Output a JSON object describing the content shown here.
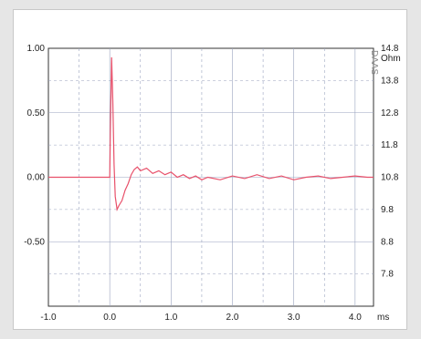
{
  "chart_data": {
    "type": "line",
    "xlabel": "ms",
    "ylabel_right": "Ohm",
    "watermark": "DAAS",
    "xlim": [
      -1.0,
      4.3
    ],
    "ylim": [
      -1.0,
      1.0
    ],
    "ylim_right": [
      6.8,
      14.8
    ],
    "x_ticks": [
      -1.0,
      0.0,
      1.0,
      2.0,
      3.0,
      4.0
    ],
    "x_tick_labels": [
      "-1.0",
      "0.0",
      "1.0",
      "2.0",
      "3.0",
      "4.0"
    ],
    "y_ticks": [
      1.0,
      0.5,
      0.0,
      -0.5
    ],
    "y_tick_labels": [
      "1.00",
      "0.50",
      "0.00",
      "-0.50"
    ],
    "y_right_ticks": [
      14.8,
      13.8,
      12.8,
      11.8,
      10.8,
      9.8,
      8.8,
      7.8
    ],
    "y_right_tick_labels": [
      "14.8",
      "13.8",
      "12.8",
      "11.8",
      "10.8",
      "9.8",
      "8.8",
      "7.8"
    ],
    "grid": true,
    "colors": {
      "line": "#e8506a",
      "grid": "#9aa3bf",
      "axis": "#333333"
    },
    "series": [
      {
        "values_x": [
          -1.0,
          -0.5,
          0.0,
          0.01,
          0.03,
          0.05,
          0.07,
          0.09,
          0.12,
          0.15,
          0.2,
          0.25,
          0.3,
          0.35,
          0.4,
          0.45,
          0.5,
          0.6,
          0.7,
          0.8,
          0.9,
          1.0,
          1.1,
          1.2,
          1.3,
          1.4,
          1.5,
          1.6,
          1.8,
          2.0,
          2.2,
          2.4,
          2.6,
          2.8,
          3.0,
          3.2,
          3.4,
          3.6,
          3.8,
          4.0,
          4.2,
          4.3
        ],
        "values_y": [
          0.0,
          0.0,
          0.0,
          0.35,
          0.93,
          0.6,
          0.1,
          -0.15,
          -0.25,
          -0.22,
          -0.18,
          -0.1,
          -0.05,
          0.02,
          0.06,
          0.08,
          0.05,
          0.07,
          0.03,
          0.05,
          0.02,
          0.04,
          0.0,
          0.02,
          -0.01,
          0.01,
          -0.02,
          0.0,
          -0.02,
          0.01,
          -0.01,
          0.02,
          -0.01,
          0.01,
          -0.02,
          0.0,
          0.01,
          -0.01,
          0.0,
          0.01,
          0.0,
          0.0
        ]
      }
    ]
  }
}
